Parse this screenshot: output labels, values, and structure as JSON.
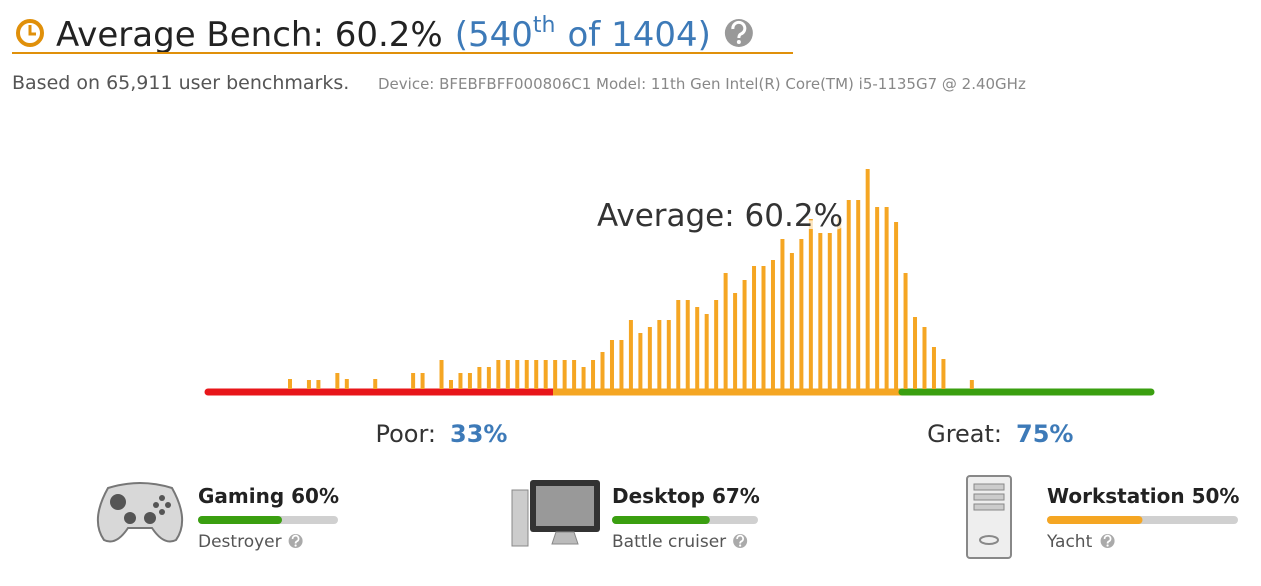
{
  "header": {
    "title": "Average Bench: 60.2%",
    "rank_open": "(540",
    "rank_suffix": "th",
    "rank_close": "of 1404)"
  },
  "subtitle": {
    "summary": "Based on 65,911 user benchmarks.",
    "device": "Device: BFEBFBFF000806C1 Model: 11th Gen Intel(R) Core(TM) i5-1135G7 @ 2.40GHz"
  },
  "histogram": {
    "type": "bar",
    "annotation": "Average: 60.2%",
    "color": "#f5a623",
    "values": [
      10,
      0,
      9,
      9,
      0,
      16,
      10,
      0,
      0,
      10,
      0,
      0,
      0,
      16,
      16,
      0,
      29,
      9,
      16,
      16,
      22,
      22,
      29,
      29,
      29,
      29,
      29,
      29,
      29,
      29,
      29,
      22,
      29,
      37,
      49,
      49,
      69,
      56,
      62,
      69,
      69,
      89,
      89,
      82,
      75,
      89,
      116,
      96,
      109,
      123,
      123,
      129,
      150,
      136,
      150,
      170,
      156,
      156,
      172,
      189,
      189,
      220,
      182,
      182,
      167,
      116,
      72,
      62,
      42,
      30,
      0,
      0,
      9
    ],
    "poor_label": "Poor:",
    "poor_value": "33%",
    "great_label": "Great:",
    "great_value": "75%"
  },
  "categories": [
    {
      "title": "Gaming 60%",
      "score": 60,
      "rating": "Destroyer",
      "color": "#3a9f10"
    },
    {
      "title": "Desktop 67%",
      "score": 67,
      "rating": "Battle cruiser",
      "color": "#3a9f10"
    },
    {
      "title": "Workstation 50%",
      "score": 50,
      "rating": "Yacht",
      "color": "#f5a623"
    }
  ]
}
